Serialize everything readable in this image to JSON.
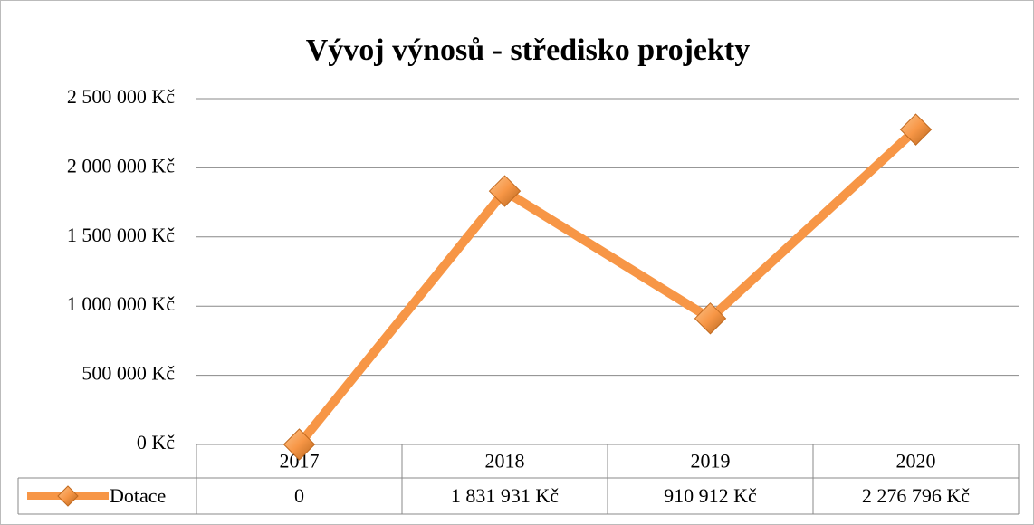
{
  "chart_data": {
    "type": "line",
    "title": "Vývoj výnosů - středisko  projekty",
    "categories": [
      "2017",
      "2018",
      "2019",
      "2020"
    ],
    "series": [
      {
        "name": "Dotace",
        "color": "#f79646",
        "values": [
          0,
          1831931,
          910912,
          2276796
        ],
        "value_labels": [
          "0",
          "1 831 931 Kč",
          "910 912 Kč",
          "2 276 796 Kč"
        ]
      }
    ],
    "ylim": [
      0,
      2500000
    ],
    "yticks": [
      {
        "value": 0,
        "label": "0 Kč"
      },
      {
        "value": 500000,
        "label": "500 000 Kč"
      },
      {
        "value": 1000000,
        "label": "1 000 000 Kč"
      },
      {
        "value": 1500000,
        "label": "1 500 000 Kč"
      },
      {
        "value": 2000000,
        "label": "2 000 000 Kč"
      },
      {
        "value": 2500000,
        "label": "2 500 000 Kč"
      }
    ],
    "grid": true,
    "legend": "data-table"
  }
}
